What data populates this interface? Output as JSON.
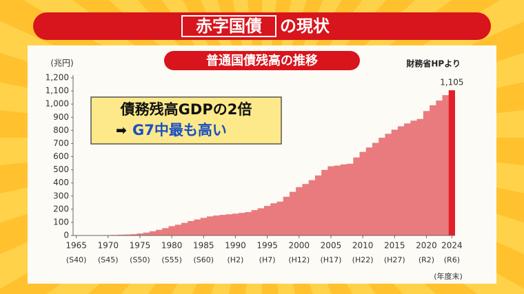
{
  "chart_data": {
    "type": "bar",
    "title_boxed": "赤字国債",
    "title_rest": "の現状",
    "subtitle": "普通国債残高の推移",
    "source": "財務省HPより",
    "ylabel": "(兆円)",
    "xlabel": "(年度末)",
    "annotation": [
      "債務残高GDPの2倍",
      "G7中最も高い"
    ],
    "x": [
      1965,
      1966,
      1967,
      1968,
      1969,
      1970,
      1971,
      1972,
      1973,
      1974,
      1975,
      1976,
      1977,
      1978,
      1979,
      1980,
      1981,
      1982,
      1983,
      1984,
      1985,
      1986,
      1987,
      1988,
      1989,
      1990,
      1991,
      1992,
      1993,
      1994,
      1995,
      1996,
      1997,
      1998,
      1999,
      2000,
      2001,
      2002,
      2003,
      2004,
      2005,
      2006,
      2007,
      2008,
      2009,
      2010,
      2011,
      2012,
      2013,
      2014,
      2015,
      2016,
      2017,
      2018,
      2019,
      2020,
      2021,
      2022,
      2023,
      2024
    ],
    "values": [
      0.2,
      0.9,
      1.7,
      2.4,
      2.8,
      2.8,
      4,
      5.8,
      7.5,
      9.7,
      15,
      22,
      32,
      43,
      56,
      71,
      82,
      96,
      110,
      122,
      134,
      145,
      152,
      157,
      161,
      166,
      172,
      178,
      193,
      207,
      225,
      245,
      258,
      295,
      332,
      368,
      392,
      421,
      457,
      499,
      527,
      532,
      541,
      546,
      594,
      636,
      670,
      705,
      744,
      774,
      805,
      831,
      853,
      874,
      887,
      947,
      991,
      1027,
      1068,
      1105
    ],
    "value_labels": [
      null,
      null,
      null,
      null,
      null,
      null,
      null,
      null,
      null,
      null,
      null,
      null,
      null,
      null,
      null,
      null,
      null,
      null,
      null,
      null,
      null,
      null,
      null,
      null,
      null,
      null,
      null,
      null,
      null,
      null,
      null,
      null,
      null,
      null,
      null,
      null,
      null,
      null,
      null,
      null,
      null,
      null,
      null,
      null,
      null,
      null,
      null,
      null,
      null,
      null,
      null,
      null,
      null,
      null,
      null,
      null,
      null,
      null,
      null,
      "1,105"
    ],
    "color": "#e97b7e",
    "highlight_color": "#e2202a",
    "xlim": [
      1964.5,
      2024.5
    ],
    "xticks": [
      1965,
      1970,
      1975,
      1980,
      1985,
      1990,
      1995,
      2000,
      2005,
      2010,
      2015,
      2020,
      2024
    ],
    "xtick_eras": [
      "(S40)",
      "(S45)",
      "(S50)",
      "(S55)",
      "(S60)",
      "(H2)",
      "(H7)",
      "(H12)",
      "(H17)",
      "(H22)",
      "(H27)",
      "(R2)",
      "(R6)"
    ],
    "ylim": [
      0,
      1200
    ],
    "yticks": [
      0,
      100,
      200,
      300,
      400,
      500,
      600,
      700,
      800,
      900,
      {
        "value": 1000,
        "label": "1,000"
      },
      {
        "value": 1100,
        "label": "1,100"
      },
      {
        "value": 1200,
        "label": "1,200"
      }
    ],
    "grid": false
  }
}
